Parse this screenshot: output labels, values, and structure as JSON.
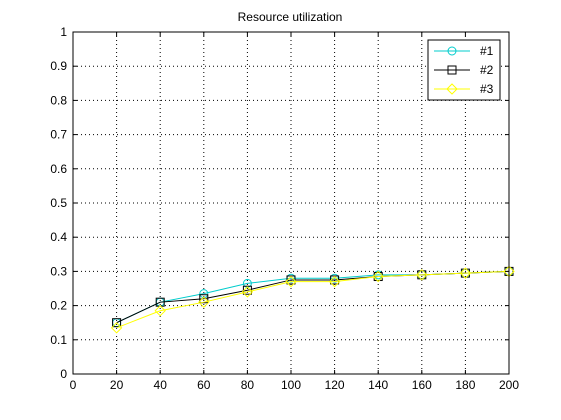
{
  "chart_data": {
    "type": "line",
    "title": "Resource utilization",
    "xlabel": "",
    "ylabel": "",
    "xlim": [
      0,
      200
    ],
    "ylim": [
      0,
      1
    ],
    "xticks": [
      0,
      20,
      40,
      60,
      80,
      100,
      120,
      140,
      160,
      180,
      200
    ],
    "yticks": [
      0,
      0.1,
      0.2,
      0.3,
      0.4,
      0.5,
      0.6,
      0.7,
      0.8,
      0.9,
      1
    ],
    "xtick_labels": [
      "0",
      "20",
      "40",
      "60",
      "80",
      "100",
      "120",
      "140",
      "160",
      "180",
      "200"
    ],
    "ytick_labels": [
      "0",
      "0.1",
      "0.2",
      "0.3",
      "0.4",
      "0.5",
      "0.6",
      "0.7",
      "0.8",
      "0.9",
      "1"
    ],
    "grid": true,
    "legend_position": "top-right",
    "series": [
      {
        "name": "#1",
        "color": "#00cccc",
        "marker": "circle",
        "x": [
          20,
          40,
          60,
          80,
          100,
          120,
          140,
          160,
          180,
          200
        ],
        "y": [
          0.15,
          0.21,
          0.235,
          0.265,
          0.28,
          0.28,
          0.29,
          0.29,
          0.295,
          0.3
        ]
      },
      {
        "name": "#2",
        "color": "#000000",
        "marker": "square",
        "x": [
          20,
          40,
          60,
          80,
          100,
          120,
          140,
          160,
          180,
          200
        ],
        "y": [
          0.15,
          0.21,
          0.22,
          0.245,
          0.275,
          0.275,
          0.285,
          0.29,
          0.295,
          0.3
        ]
      },
      {
        "name": "#3",
        "color": "#ffff00",
        "marker": "diamond",
        "x": [
          20,
          40,
          60,
          80,
          100,
          120,
          140,
          160,
          180,
          200
        ],
        "y": [
          0.135,
          0.185,
          0.21,
          0.24,
          0.27,
          0.27,
          0.285,
          0.29,
          0.295,
          0.3
        ]
      }
    ]
  }
}
